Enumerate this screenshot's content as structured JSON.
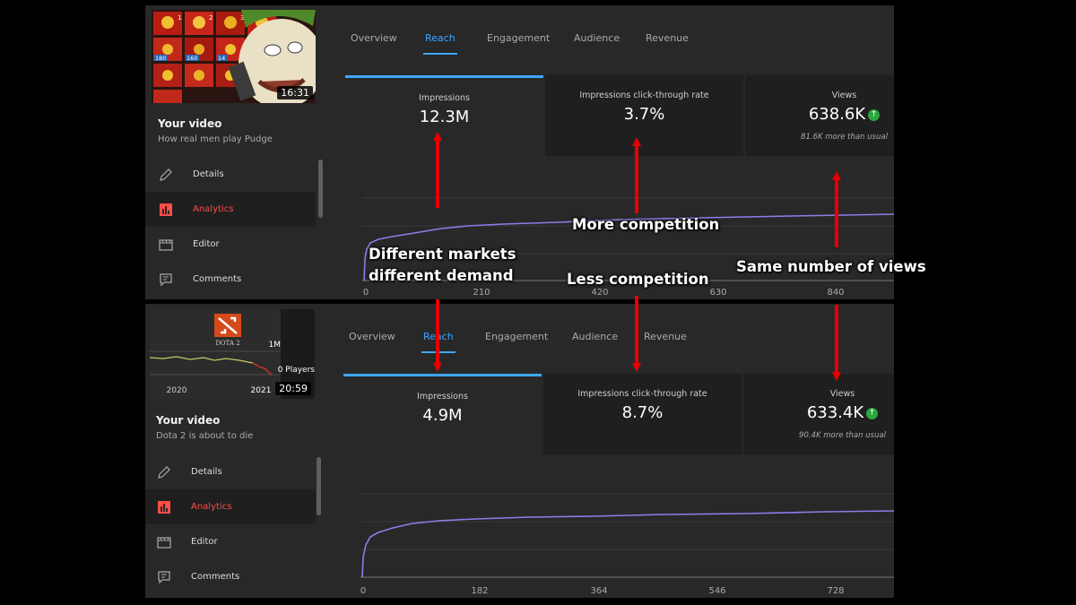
{
  "colors": {
    "accent_blue": "#3ea6ff",
    "analytics_red": "#ff4e45",
    "chart_line": "#8a7ee8",
    "arrow_red": "#e60000",
    "up_green": "#2ba640"
  },
  "tabs": [
    "Overview",
    "Reach",
    "Engagement",
    "Audience",
    "Revenue"
  ],
  "active_tab": "Reach",
  "nav_items": [
    {
      "label": "Details",
      "icon": "pencil-icon"
    },
    {
      "label": "Analytics",
      "icon": "analytics-icon"
    },
    {
      "label": "Editor",
      "icon": "clapperboard-icon"
    },
    {
      "label": "Comments",
      "icon": "comment-icon"
    }
  ],
  "top": {
    "your_video_label": "Your video",
    "video_title": "How real men play Pudge",
    "duration": "16:31",
    "thumbnail_numbers": [
      "1",
      "2",
      "3",
      "180",
      "160",
      "14"
    ],
    "metrics": [
      {
        "label": "Impressions",
        "value": "12.3M",
        "note": ""
      },
      {
        "label": "Impressions click-through rate",
        "value": "3.7%",
        "note": ""
      },
      {
        "label": "Views",
        "value": "638.6K",
        "note": "81.6K more than usual"
      }
    ],
    "x_ticks": [
      "0",
      "210",
      "420",
      "630",
      "840"
    ]
  },
  "bottom": {
    "your_video_label": "Your video",
    "video_title": "Dota 2 is about to die",
    "duration": "20:59",
    "thumbnail": {
      "logo_text": "DOTA 2",
      "y_top_label": "1M",
      "y_bottom_label": "0 Players",
      "x_labels": [
        "2020",
        "2021"
      ]
    },
    "metrics": [
      {
        "label": "Impressions",
        "value": "4.9M",
        "note": ""
      },
      {
        "label": "Impressions click-through rate",
        "value": "8.7%",
        "note": ""
      },
      {
        "label": "Views",
        "value": "633.4K",
        "note": "90.4K more than usual"
      }
    ],
    "x_ticks": [
      "0",
      "182",
      "364",
      "546",
      "728"
    ]
  },
  "annotations": {
    "more_competition": "More competition",
    "less_competition": "Less competition",
    "same_views": "Same number of views",
    "markets_line1": "Different markets",
    "markets_line2": "different demand"
  }
}
